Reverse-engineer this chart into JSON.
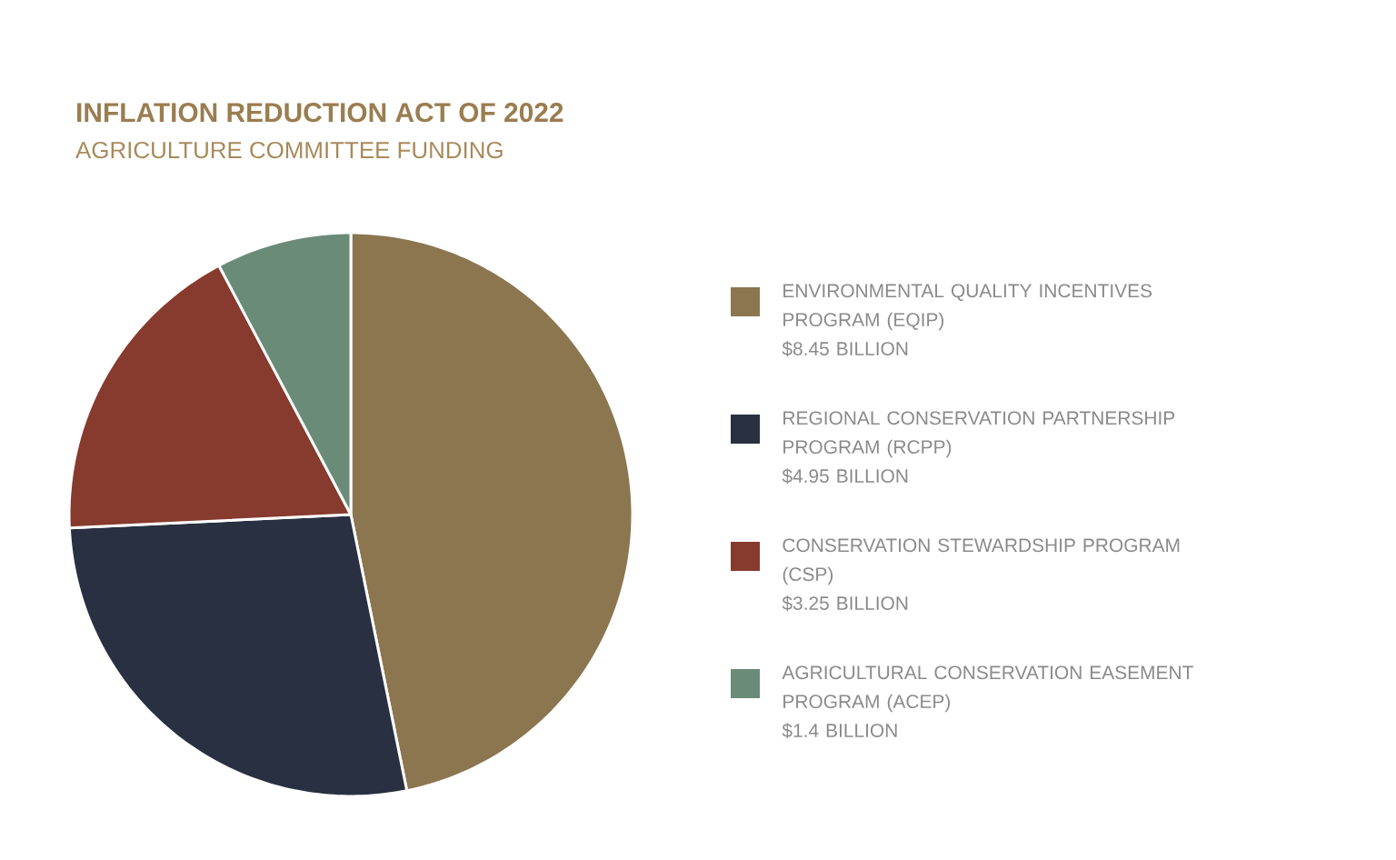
{
  "chart_data": {
    "type": "pie",
    "title": "INFLATION REDUCTION ACT OF 2022",
    "subtitle": "AGRICULTURE COMMITTEE FUNDING",
    "categories": [
      "ENVIRONMENTAL QUALITY INCENTIVES PROGRAM (EQIP)",
      "REGIONAL CONSERVATION PARTNERSHIP PROGRAM (RCPP)",
      "CONSERVATION STEWARDSHIP PROGRAM (CSP)",
      "AGRICULTURAL CONSERVATION EASEMENT PROGRAM (ACEP)"
    ],
    "values": [
      8.45,
      4.95,
      3.25,
      1.4
    ],
    "value_labels": [
      "$8.45 BILLION",
      "$4.95 BILLION",
      "$3.25 BILLION",
      "$1.4 BILLION"
    ],
    "colors": [
      "#8b7650",
      "#283041",
      "#873a2e",
      "#6a8b78"
    ],
    "legend": "right"
  }
}
